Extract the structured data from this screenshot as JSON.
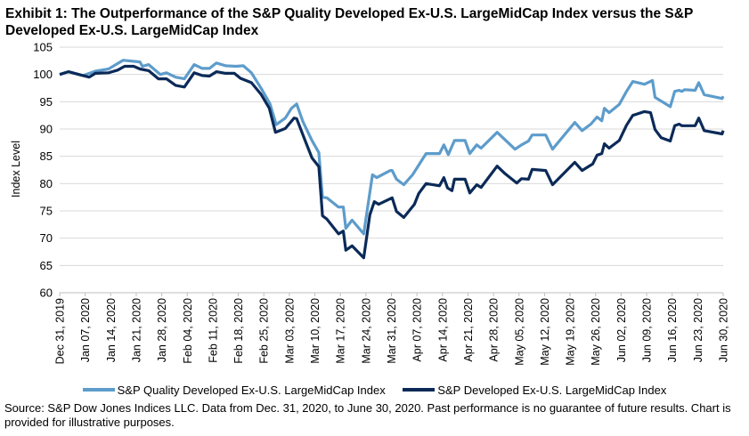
{
  "chart_data": {
    "type": "line",
    "title": "Exhibit 1: The Outperformance of the S&P Quality Developed Ex-U.S. LargeMidCap Index versus the S&P Developed Ex-U.S. LargeMidCap Index",
    "xlabel": "",
    "ylabel": "Index Level",
    "x_unit": "days since Dec 31, 2019",
    "xlim": [
      0,
      182
    ],
    "ylim": [
      60,
      105
    ],
    "yticks": [
      60,
      65,
      70,
      75,
      80,
      85,
      90,
      95,
      100,
      105
    ],
    "xtick_labels": [
      "Dec 31, 2019",
      "Jan 07, 2020",
      "Jan 14, 2020",
      "Jan 21, 2020",
      "Jan 28, 2020",
      "Feb 04, 2020",
      "Feb 11, 2020",
      "Feb 18, 2020",
      "Feb 25, 2020",
      "Mar 03, 2020",
      "Mar 10, 2020",
      "Mar 17, 2020",
      "Mar 24, 2020",
      "Mar 31, 2020",
      "Apr 07, 2020",
      "Apr 14, 2020",
      "Apr 21, 2020",
      "Apr 28, 2020",
      "May 05, 2020",
      "May 12, 2020",
      "May 19, 2020",
      "May 26, 2020",
      "Jun 02, 2020",
      "Jun 09, 2020",
      "Jun 16, 2020",
      "Jun 23, 2020",
      "Jun 30, 2020"
    ],
    "grid": true,
    "legend_position": "bottom",
    "series": [
      {
        "name": "S&P Quality Developed Ex-U.S. LargeMidCap Index",
        "color": "#5d9ccb",
        "points": [
          [
            0,
            100
          ],
          [
            2.4,
            100.5
          ],
          [
            6.4,
            99.8
          ],
          [
            9.8,
            100.6
          ],
          [
            13.4,
            101
          ],
          [
            15.4,
            101.8
          ],
          [
            17.4,
            102.6
          ],
          [
            22,
            102.3
          ],
          [
            22.7,
            101.5
          ],
          [
            24.4,
            101.8
          ],
          [
            27.6,
            100
          ],
          [
            29.3,
            100.3
          ],
          [
            31.8,
            99.5
          ],
          [
            34.2,
            99.2
          ],
          [
            36.9,
            101.8
          ],
          [
            39.1,
            101.1
          ],
          [
            41.1,
            101.1
          ],
          [
            43,
            102.1
          ],
          [
            45.5,
            101.6
          ],
          [
            48.4,
            101.5
          ],
          [
            50.4,
            101.6
          ],
          [
            52.6,
            100.3
          ],
          [
            55.3,
            97.4
          ],
          [
            57.7,
            94.6
          ],
          [
            59.4,
            90.8
          ],
          [
            61.9,
            92
          ],
          [
            63.6,
            93.8
          ],
          [
            65,
            94.6
          ],
          [
            66.7,
            91.4
          ],
          [
            69.2,
            87.9
          ],
          [
            71.1,
            85.7
          ],
          [
            72.1,
            77.5
          ],
          [
            73.3,
            77.4
          ],
          [
            76.5,
            75.7
          ],
          [
            77.8,
            75.7
          ],
          [
            78.5,
            71.8
          ],
          [
            80.2,
            73.3
          ],
          [
            83.4,
            70.8
          ],
          [
            85.8,
            81.6
          ],
          [
            87,
            81.1
          ],
          [
            90.7,
            82.4
          ],
          [
            91.2,
            82.4
          ],
          [
            92.4,
            80.8
          ],
          [
            94.4,
            79.8
          ],
          [
            96.8,
            81.6
          ],
          [
            99,
            83.9
          ],
          [
            100.5,
            85.5
          ],
          [
            104.2,
            85.5
          ],
          [
            105.4,
            87.1
          ],
          [
            106.6,
            85.3
          ],
          [
            108.3,
            87.9
          ],
          [
            111.2,
            87.9
          ],
          [
            112.5,
            85.5
          ],
          [
            114.4,
            87.1
          ],
          [
            115.6,
            86.5
          ],
          [
            120,
            89.4
          ],
          [
            124.9,
            86.3
          ],
          [
            126.7,
            87.1
          ],
          [
            128.6,
            87.8
          ],
          [
            129.6,
            88.9
          ],
          [
            133.3,
            88.9
          ],
          [
            135.2,
            86.3
          ],
          [
            141.3,
            91.2
          ],
          [
            143.3,
            89.7
          ],
          [
            145.7,
            90.9
          ],
          [
            147.4,
            92.2
          ],
          [
            148.7,
            91.5
          ],
          [
            149.4,
            93.8
          ],
          [
            150.7,
            93
          ],
          [
            153.5,
            94.5
          ],
          [
            155.5,
            96.9
          ],
          [
            157.2,
            98.7
          ],
          [
            160.4,
            98.2
          ],
          [
            162.6,
            98.9
          ],
          [
            163.3,
            95.8
          ],
          [
            167.5,
            94.1
          ],
          [
            168.7,
            96.9
          ],
          [
            169.9,
            97.1
          ],
          [
            170.7,
            96.9
          ],
          [
            171.4,
            97.2
          ],
          [
            174.3,
            97.1
          ],
          [
            175.3,
            98.5
          ],
          [
            176.8,
            96.3
          ],
          [
            181.7,
            95.6
          ],
          [
            182,
            96
          ]
        ]
      },
      {
        "name": "S&P Developed Ex-U.S. LargeMidCap Index",
        "color": "#0b2a58",
        "points": [
          [
            0,
            100
          ],
          [
            2.4,
            100.5
          ],
          [
            6.4,
            99.8
          ],
          [
            8.1,
            99.5
          ],
          [
            9.8,
            100.2
          ],
          [
            13.4,
            100.3
          ],
          [
            15.9,
            100.8
          ],
          [
            17.8,
            101.5
          ],
          [
            20.3,
            101.5
          ],
          [
            22,
            101
          ],
          [
            24.4,
            100.7
          ],
          [
            27.1,
            99.2
          ],
          [
            29.3,
            99.2
          ],
          [
            31.8,
            98
          ],
          [
            34.2,
            97.7
          ],
          [
            36.9,
            100.3
          ],
          [
            39.1,
            99.8
          ],
          [
            41.1,
            99.7
          ],
          [
            43,
            100.5
          ],
          [
            45.5,
            100.2
          ],
          [
            47.9,
            100.2
          ],
          [
            49.6,
            99.3
          ],
          [
            52.6,
            98.5
          ],
          [
            55.3,
            96.3
          ],
          [
            57.5,
            93.8
          ],
          [
            59.2,
            89.4
          ],
          [
            61.9,
            90.1
          ],
          [
            64.3,
            92
          ],
          [
            65,
            91.9
          ],
          [
            67.2,
            88.1
          ],
          [
            69.2,
            84.7
          ],
          [
            71.1,
            83.1
          ],
          [
            72.1,
            74.1
          ],
          [
            73.3,
            73.5
          ],
          [
            76.5,
            70.8
          ],
          [
            77.8,
            71.3
          ],
          [
            78.5,
            67.8
          ],
          [
            80.2,
            68.6
          ],
          [
            83.4,
            66.4
          ],
          [
            85.1,
            74.3
          ],
          [
            86.3,
            76.7
          ],
          [
            87.5,
            76.2
          ],
          [
            91.2,
            77.4
          ],
          [
            92.4,
            74.9
          ],
          [
            94.4,
            73.8
          ],
          [
            97.3,
            76.2
          ],
          [
            98.5,
            78.2
          ],
          [
            100.5,
            80
          ],
          [
            104.2,
            79.6
          ],
          [
            105.4,
            81.1
          ],
          [
            106.4,
            79.2
          ],
          [
            107.6,
            78.7
          ],
          [
            108.3,
            80.8
          ],
          [
            111.2,
            80.8
          ],
          [
            112.5,
            78.3
          ],
          [
            114.4,
            79.8
          ],
          [
            115.6,
            79.3
          ],
          [
            120,
            83.2
          ],
          [
            122.2,
            81.8
          ],
          [
            125.4,
            80.1
          ],
          [
            126.7,
            80.9
          ],
          [
            128.6,
            80.8
          ],
          [
            129.6,
            82.6
          ],
          [
            133.3,
            82.4
          ],
          [
            135.2,
            79.8
          ],
          [
            141.3,
            83.9
          ],
          [
            143.3,
            82.4
          ],
          [
            146.2,
            83.6
          ],
          [
            147.4,
            85.2
          ],
          [
            148.7,
            85.5
          ],
          [
            149.4,
            87.3
          ],
          [
            150.7,
            86.5
          ],
          [
            153.5,
            87.9
          ],
          [
            155.5,
            90.7
          ],
          [
            157.2,
            92.5
          ],
          [
            160.4,
            93.2
          ],
          [
            162.1,
            93
          ],
          [
            163.3,
            89.9
          ],
          [
            165,
            88.4
          ],
          [
            167.5,
            87.8
          ],
          [
            168.7,
            90.6
          ],
          [
            169.9,
            90.9
          ],
          [
            170.7,
            90.6
          ],
          [
            174.3,
            90.6
          ],
          [
            175.3,
            92
          ],
          [
            176.8,
            89.7
          ],
          [
            181.7,
            89.1
          ],
          [
            182,
            89.7
          ]
        ]
      }
    ]
  },
  "source": "Source: S&P Dow Jones Indices LLC. Data from Dec. 31, 2020, to June 30, 2020. Past performance is no guarantee of future results. Chart is provided for illustrative purposes."
}
